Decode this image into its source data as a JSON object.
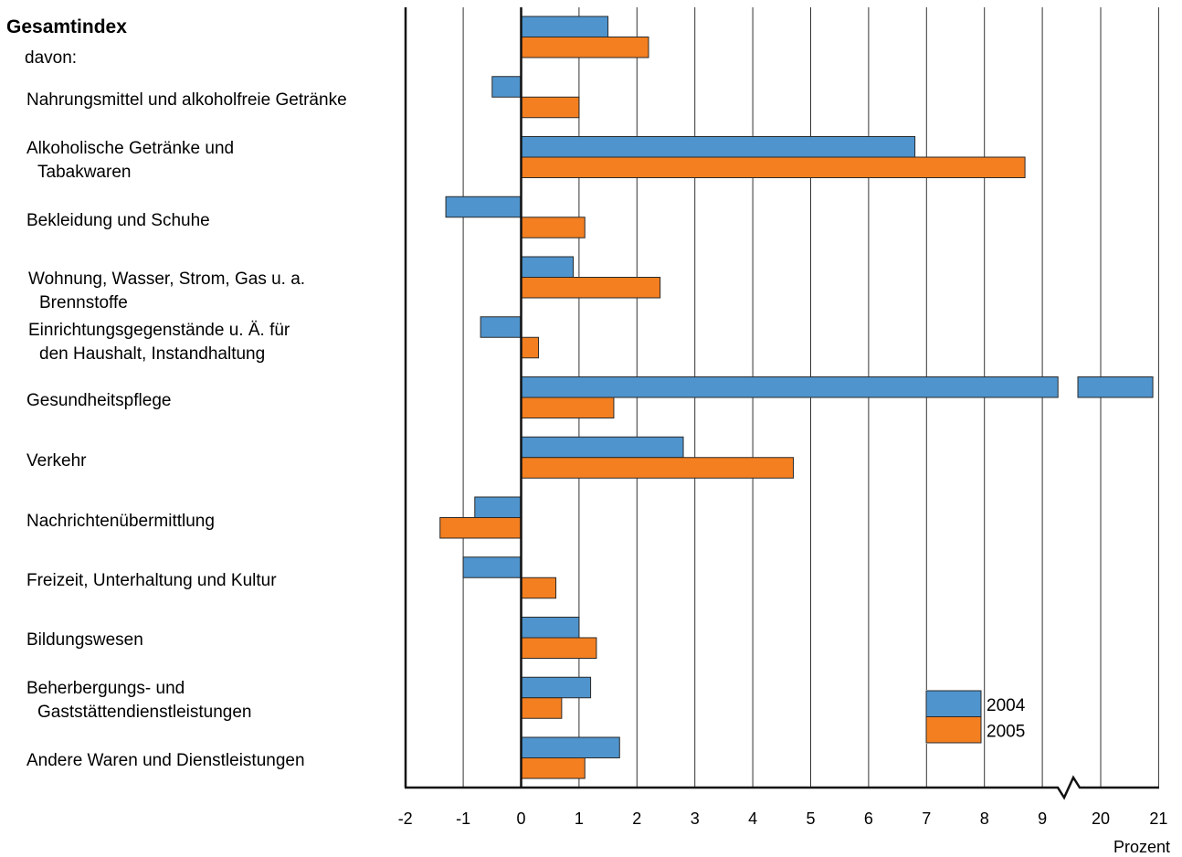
{
  "chart_data": {
    "type": "bar",
    "orientation": "horizontal",
    "title": "Gesamtindex",
    "subtitle": "davon:",
    "xlabel": "Prozent",
    "categories": [
      [
        "Gesamtindex"
      ],
      [
        "Nahrungsmittel und alkoholfreie Getränke"
      ],
      [
        "Alkoholische Getränke und",
        "Tabakwaren"
      ],
      [
        "Bekleidung und Schuhe"
      ],
      [
        "Wohnung, Wasser, Strom, Gas u. a.",
        "Brennstoffe"
      ],
      [
        "Einrichtungsgegenstände u. Ä. für",
        "den Haushalt, Instandhaltung"
      ],
      [
        "Gesundheitspflege"
      ],
      [
        "Verkehr"
      ],
      [
        "Nachrichtenübermittlung"
      ],
      [
        "Freizeit, Unterhaltung und Kultur"
      ],
      [
        "Bildungswesen"
      ],
      [
        "Beherbergungs- und",
        "Gaststättendienstleistungen"
      ],
      [
        "Andere Waren und Dienstleistungen"
      ]
    ],
    "series": [
      {
        "name": "2004",
        "color": "#4f94cd",
        "values": [
          1.5,
          -0.5,
          6.8,
          -1.3,
          0.9,
          -0.7,
          20.9,
          2.8,
          -0.8,
          -1.0,
          1.0,
          1.2,
          1.7
        ]
      },
      {
        "name": "2005",
        "color": "#f47f20",
        "values": [
          2.2,
          1.0,
          8.7,
          1.1,
          2.4,
          0.3,
          1.6,
          4.7,
          -1.4,
          0.6,
          1.3,
          0.7,
          1.1
        ]
      }
    ],
    "xticks": [
      "-2",
      "-1",
      "0",
      "1",
      "2",
      "3",
      "4",
      "5",
      "6",
      "7",
      "8",
      "9",
      "20",
      "21"
    ],
    "axis_break": {
      "from": 9,
      "to": 20
    },
    "xlim": [
      -2,
      21
    ],
    "grid": true,
    "legend_position": "bottom-right"
  }
}
